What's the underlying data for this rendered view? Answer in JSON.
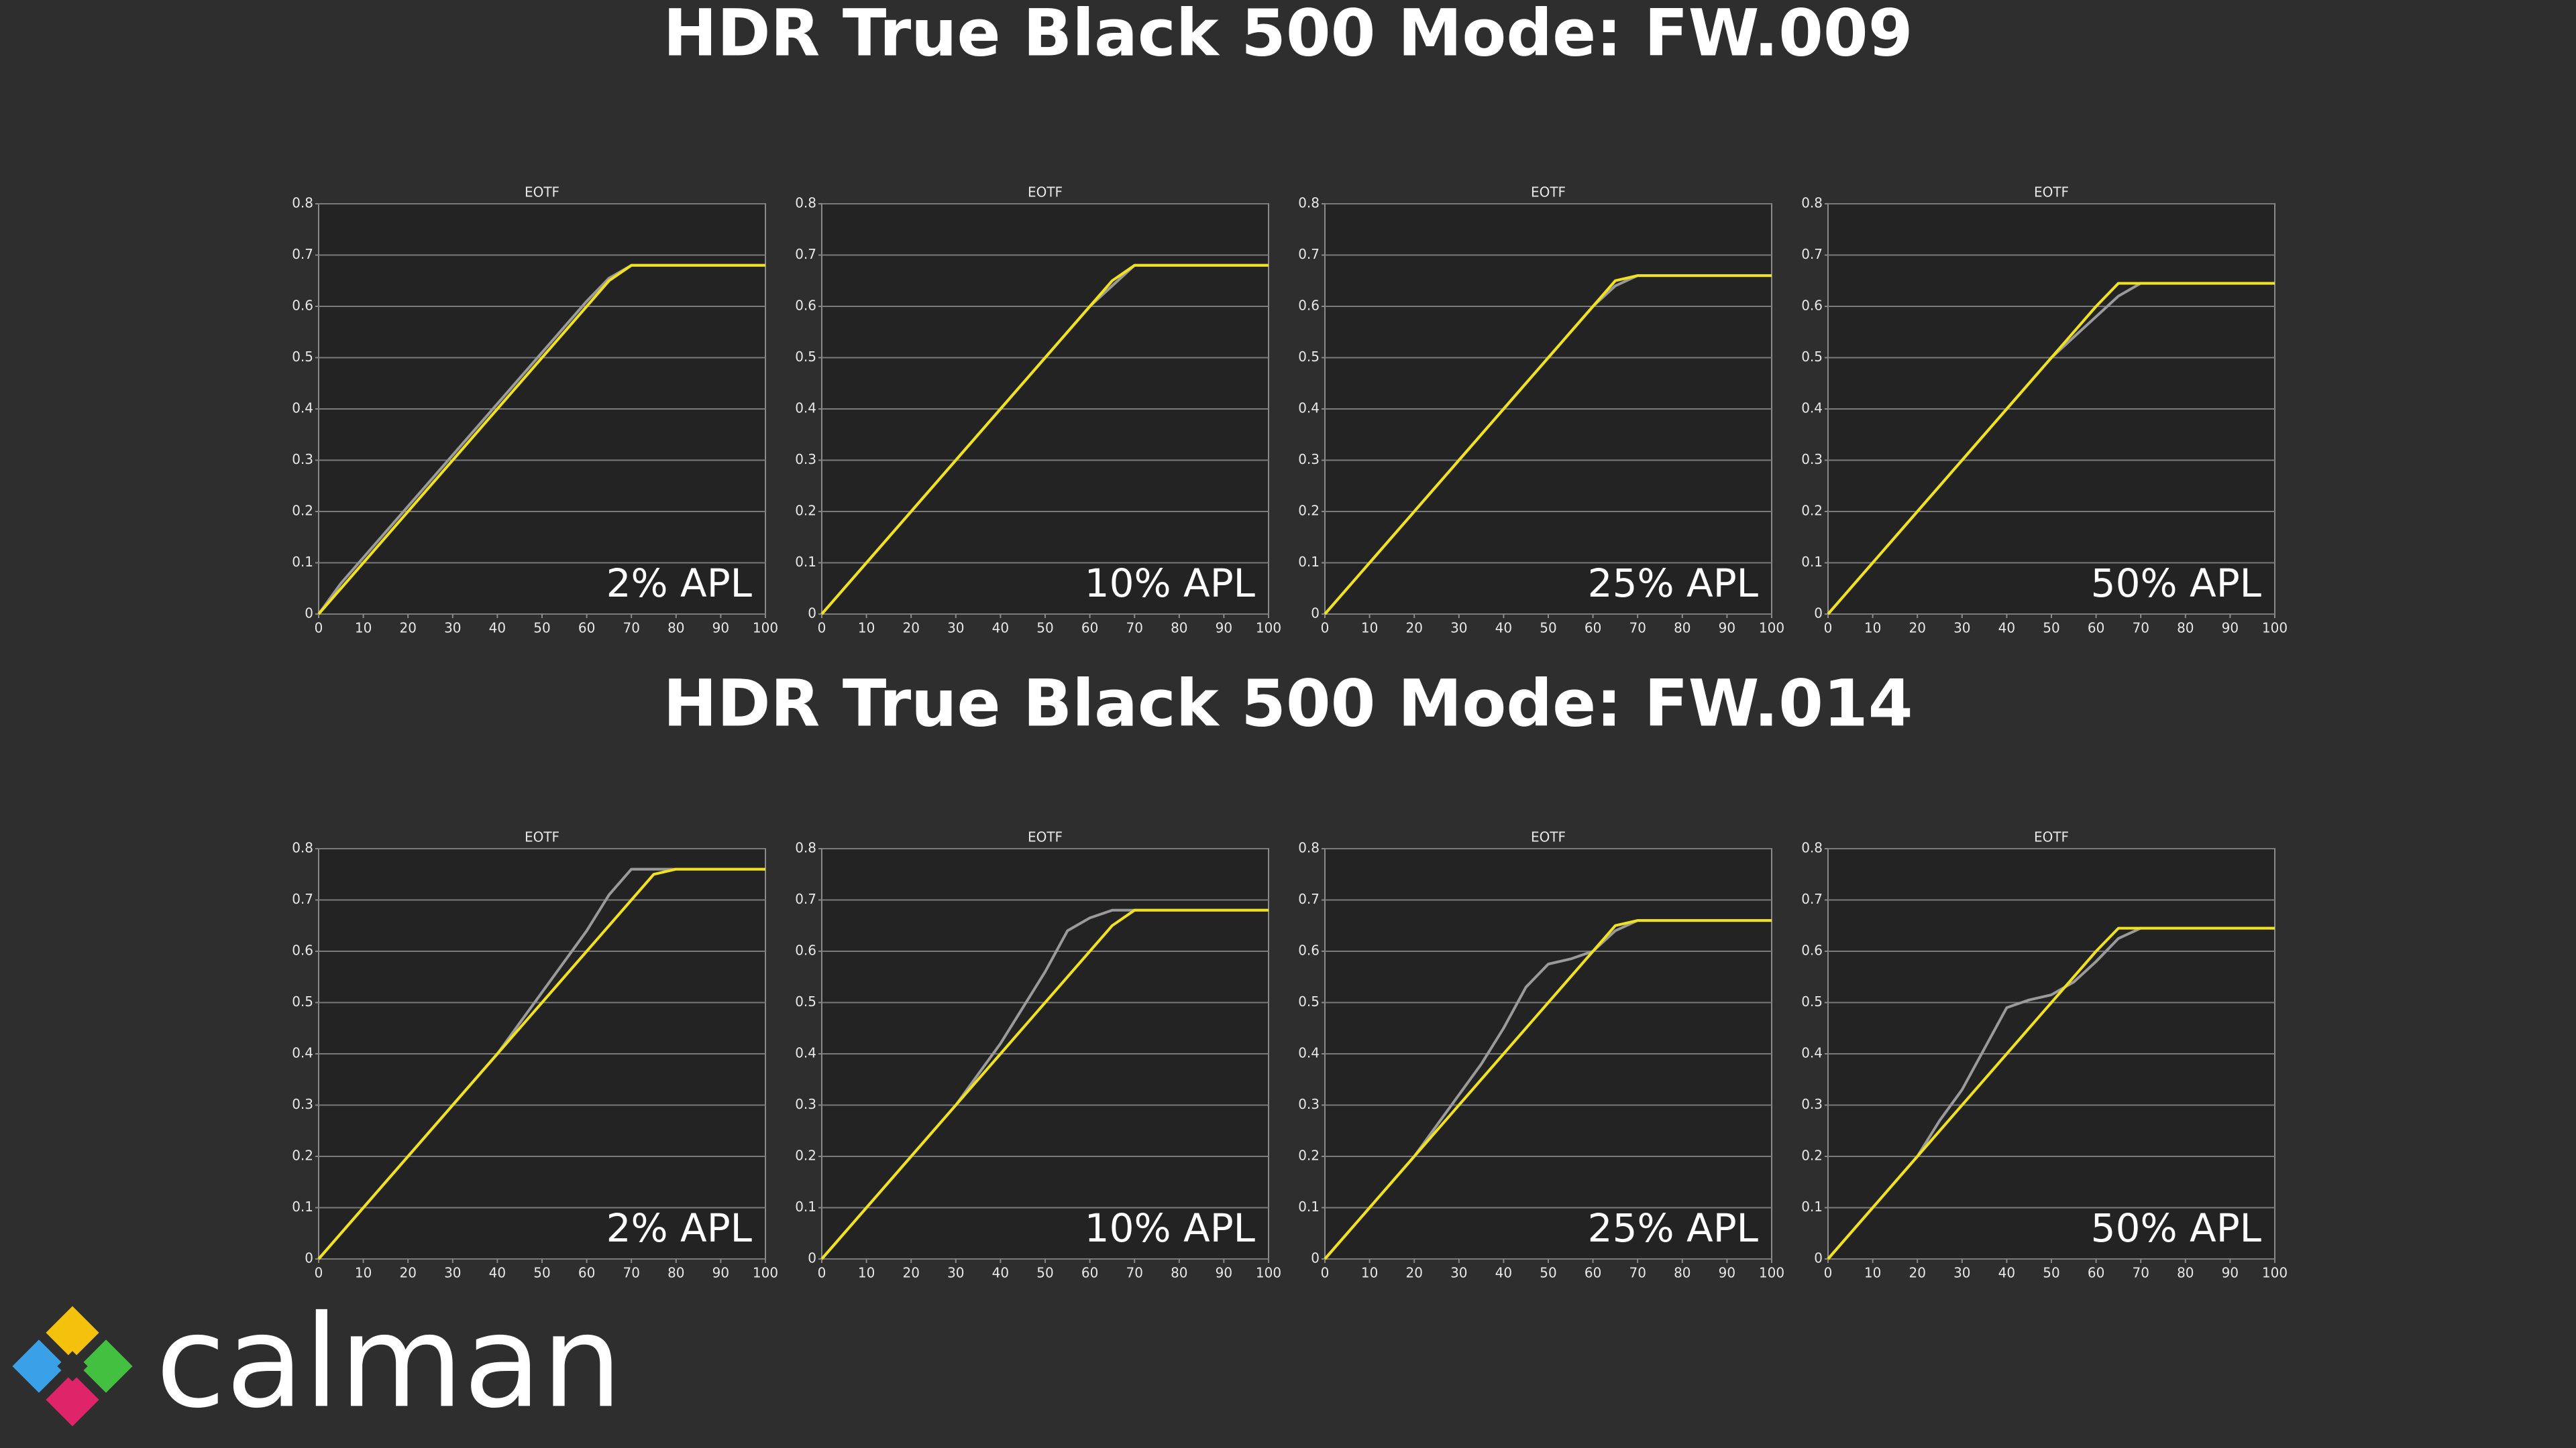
{
  "sections": [
    "HDR True Black 500 Mode: FW.009",
    "HDR True Black 500 Mode: FW.014"
  ],
  "logo": "calman",
  "chart_data": [
    {
      "type": "line",
      "title": "EOTF",
      "annotation": "2% APL",
      "x": [
        0,
        5,
        10,
        15,
        20,
        25,
        30,
        35,
        40,
        45,
        50,
        55,
        60,
        65,
        70,
        75,
        80,
        85,
        90,
        95,
        100
      ],
      "series": [
        {
          "color": "#9a9a9a",
          "values": [
            0,
            0.06,
            0.11,
            0.16,
            0.21,
            0.26,
            0.31,
            0.36,
            0.41,
            0.46,
            0.51,
            0.56,
            0.61,
            0.655,
            0.68,
            0.68,
            0.68,
            0.68,
            0.68,
            0.68,
            0.68
          ]
        },
        {
          "color": "#f2e21e",
          "values": [
            0,
            0.05,
            0.1,
            0.15,
            0.2,
            0.25,
            0.3,
            0.35,
            0.4,
            0.45,
            0.5,
            0.55,
            0.6,
            0.65,
            0.68,
            0.68,
            0.68,
            0.68,
            0.68,
            0.68,
            0.68
          ]
        }
      ],
      "xlim": [
        0,
        100
      ],
      "ylim": [
        0,
        0.8
      ],
      "xticks": [
        0,
        10,
        20,
        30,
        40,
        50,
        60,
        70,
        80,
        90,
        100
      ],
      "yticks": [
        0,
        0.1,
        0.2,
        0.3,
        0.4,
        0.5,
        0.6,
        0.7,
        0.8
      ],
      "grid": true
    },
    {
      "type": "line",
      "title": "EOTF",
      "annotation": "10% APL",
      "x": [
        0,
        5,
        10,
        15,
        20,
        25,
        30,
        35,
        40,
        45,
        50,
        55,
        60,
        65,
        70,
        75,
        80,
        85,
        90,
        95,
        100
      ],
      "series": [
        {
          "color": "#9a9a9a",
          "values": [
            0,
            0.05,
            0.1,
            0.15,
            0.2,
            0.25,
            0.3,
            0.35,
            0.4,
            0.45,
            0.5,
            0.55,
            0.6,
            0.64,
            0.68,
            0.68,
            0.68,
            0.68,
            0.68,
            0.68,
            0.68
          ]
        },
        {
          "color": "#f2e21e",
          "values": [
            0,
            0.05,
            0.1,
            0.15,
            0.2,
            0.25,
            0.3,
            0.35,
            0.4,
            0.45,
            0.5,
            0.55,
            0.6,
            0.65,
            0.68,
            0.68,
            0.68,
            0.68,
            0.68,
            0.68,
            0.68
          ]
        }
      ],
      "xlim": [
        0,
        100
      ],
      "ylim": [
        0,
        0.8
      ],
      "xticks": [
        0,
        10,
        20,
        30,
        40,
        50,
        60,
        70,
        80,
        90,
        100
      ],
      "yticks": [
        0,
        0.1,
        0.2,
        0.3,
        0.4,
        0.5,
        0.6,
        0.7,
        0.8
      ],
      "grid": true
    },
    {
      "type": "line",
      "title": "EOTF",
      "annotation": "25% APL",
      "x": [
        0,
        5,
        10,
        15,
        20,
        25,
        30,
        35,
        40,
        45,
        50,
        55,
        60,
        65,
        70,
        75,
        80,
        85,
        90,
        95,
        100
      ],
      "series": [
        {
          "color": "#9a9a9a",
          "values": [
            0,
            0.05,
            0.1,
            0.15,
            0.2,
            0.25,
            0.3,
            0.35,
            0.4,
            0.45,
            0.5,
            0.55,
            0.6,
            0.64,
            0.66,
            0.66,
            0.66,
            0.66,
            0.66,
            0.66,
            0.66
          ]
        },
        {
          "color": "#f2e21e",
          "values": [
            0,
            0.05,
            0.1,
            0.15,
            0.2,
            0.25,
            0.3,
            0.35,
            0.4,
            0.45,
            0.5,
            0.55,
            0.6,
            0.65,
            0.66,
            0.66,
            0.66,
            0.66,
            0.66,
            0.66,
            0.66
          ]
        }
      ],
      "xlim": [
        0,
        100
      ],
      "ylim": [
        0,
        0.8
      ],
      "xticks": [
        0,
        10,
        20,
        30,
        40,
        50,
        60,
        70,
        80,
        90,
        100
      ],
      "yticks": [
        0,
        0.1,
        0.2,
        0.3,
        0.4,
        0.5,
        0.6,
        0.7,
        0.8
      ],
      "grid": true
    },
    {
      "type": "line",
      "title": "EOTF",
      "annotation": "50% APL",
      "x": [
        0,
        5,
        10,
        15,
        20,
        25,
        30,
        35,
        40,
        45,
        50,
        55,
        60,
        65,
        70,
        75,
        80,
        85,
        90,
        95,
        100
      ],
      "series": [
        {
          "color": "#9a9a9a",
          "values": [
            0,
            0.05,
            0.1,
            0.15,
            0.2,
            0.25,
            0.3,
            0.35,
            0.4,
            0.45,
            0.5,
            0.54,
            0.58,
            0.62,
            0.645,
            0.645,
            0.645,
            0.645,
            0.645,
            0.645,
            0.645
          ]
        },
        {
          "color": "#f2e21e",
          "values": [
            0,
            0.05,
            0.1,
            0.15,
            0.2,
            0.25,
            0.3,
            0.35,
            0.4,
            0.45,
            0.5,
            0.55,
            0.6,
            0.645,
            0.645,
            0.645,
            0.645,
            0.645,
            0.645,
            0.645,
            0.645
          ]
        }
      ],
      "xlim": [
        0,
        100
      ],
      "ylim": [
        0,
        0.8
      ],
      "xticks": [
        0,
        10,
        20,
        30,
        40,
        50,
        60,
        70,
        80,
        90,
        100
      ],
      "yticks": [
        0,
        0.1,
        0.2,
        0.3,
        0.4,
        0.5,
        0.6,
        0.7,
        0.8
      ],
      "grid": true
    },
    {
      "type": "line",
      "title": "EOTF",
      "annotation": "2% APL",
      "x": [
        0,
        5,
        10,
        15,
        20,
        25,
        30,
        35,
        40,
        45,
        50,
        55,
        60,
        65,
        70,
        75,
        80,
        85,
        90,
        95,
        100
      ],
      "series": [
        {
          "color": "#9a9a9a",
          "values": [
            0,
            0.05,
            0.1,
            0.15,
            0.2,
            0.25,
            0.3,
            0.35,
            0.4,
            0.46,
            0.52,
            0.58,
            0.64,
            0.71,
            0.76,
            0.76,
            0.76,
            0.76,
            0.76,
            0.76,
            0.76
          ]
        },
        {
          "color": "#f2e21e",
          "values": [
            0,
            0.05,
            0.1,
            0.15,
            0.2,
            0.25,
            0.3,
            0.35,
            0.4,
            0.45,
            0.5,
            0.55,
            0.6,
            0.65,
            0.7,
            0.75,
            0.76,
            0.76,
            0.76,
            0.76,
            0.76
          ]
        }
      ],
      "xlim": [
        0,
        100
      ],
      "ylim": [
        0,
        0.8
      ],
      "xticks": [
        0,
        10,
        20,
        30,
        40,
        50,
        60,
        70,
        80,
        90,
        100
      ],
      "yticks": [
        0,
        0.1,
        0.2,
        0.3,
        0.4,
        0.5,
        0.6,
        0.7,
        0.8
      ],
      "grid": true
    },
    {
      "type": "line",
      "title": "EOTF",
      "annotation": "10% APL",
      "x": [
        0,
        5,
        10,
        15,
        20,
        25,
        30,
        35,
        40,
        45,
        50,
        55,
        60,
        65,
        70,
        75,
        80,
        85,
        90,
        95,
        100
      ],
      "series": [
        {
          "color": "#9a9a9a",
          "values": [
            0,
            0.05,
            0.1,
            0.15,
            0.2,
            0.25,
            0.3,
            0.36,
            0.42,
            0.49,
            0.56,
            0.64,
            0.665,
            0.68,
            0.68,
            0.68,
            0.68,
            0.68,
            0.68,
            0.68,
            0.68
          ]
        },
        {
          "color": "#f2e21e",
          "values": [
            0,
            0.05,
            0.1,
            0.15,
            0.2,
            0.25,
            0.3,
            0.35,
            0.4,
            0.45,
            0.5,
            0.55,
            0.6,
            0.65,
            0.68,
            0.68,
            0.68,
            0.68,
            0.68,
            0.68,
            0.68
          ]
        }
      ],
      "xlim": [
        0,
        100
      ],
      "ylim": [
        0,
        0.8
      ],
      "xticks": [
        0,
        10,
        20,
        30,
        40,
        50,
        60,
        70,
        80,
        90,
        100
      ],
      "yticks": [
        0,
        0.1,
        0.2,
        0.3,
        0.4,
        0.5,
        0.6,
        0.7,
        0.8
      ],
      "grid": true
    },
    {
      "type": "line",
      "title": "EOTF",
      "annotation": "25% APL",
      "x": [
        0,
        5,
        10,
        15,
        20,
        25,
        30,
        35,
        40,
        45,
        50,
        55,
        60,
        65,
        70,
        75,
        80,
        85,
        90,
        95,
        100
      ],
      "series": [
        {
          "color": "#9a9a9a",
          "values": [
            0,
            0.05,
            0.1,
            0.15,
            0.2,
            0.26,
            0.32,
            0.38,
            0.45,
            0.53,
            0.575,
            0.585,
            0.6,
            0.64,
            0.66,
            0.66,
            0.66,
            0.66,
            0.66,
            0.66,
            0.66
          ]
        },
        {
          "color": "#f2e21e",
          "values": [
            0,
            0.05,
            0.1,
            0.15,
            0.2,
            0.25,
            0.3,
            0.35,
            0.4,
            0.45,
            0.5,
            0.55,
            0.6,
            0.65,
            0.66,
            0.66,
            0.66,
            0.66,
            0.66,
            0.66,
            0.66
          ]
        }
      ],
      "xlim": [
        0,
        100
      ],
      "ylim": [
        0,
        0.8
      ],
      "xticks": [
        0,
        10,
        20,
        30,
        40,
        50,
        60,
        70,
        80,
        90,
        100
      ],
      "yticks": [
        0,
        0.1,
        0.2,
        0.3,
        0.4,
        0.5,
        0.6,
        0.7,
        0.8
      ],
      "grid": true
    },
    {
      "type": "line",
      "title": "EOTF",
      "annotation": "50% APL",
      "x": [
        0,
        5,
        10,
        15,
        20,
        25,
        30,
        35,
        40,
        45,
        50,
        55,
        60,
        65,
        70,
        75,
        80,
        85,
        90,
        95,
        100
      ],
      "series": [
        {
          "color": "#9a9a9a",
          "values": [
            0,
            0.05,
            0.1,
            0.15,
            0.2,
            0.27,
            0.33,
            0.41,
            0.49,
            0.505,
            0.515,
            0.54,
            0.58,
            0.625,
            0.645,
            0.645,
            0.645,
            0.645,
            0.645,
            0.645,
            0.645
          ]
        },
        {
          "color": "#f2e21e",
          "values": [
            0,
            0.05,
            0.1,
            0.15,
            0.2,
            0.25,
            0.3,
            0.35,
            0.4,
            0.45,
            0.5,
            0.55,
            0.6,
            0.645,
            0.645,
            0.645,
            0.645,
            0.645,
            0.645,
            0.645,
            0.645
          ]
        }
      ],
      "xlim": [
        0,
        100
      ],
      "ylim": [
        0,
        0.8
      ],
      "xticks": [
        0,
        10,
        20,
        30,
        40,
        50,
        60,
        70,
        80,
        90,
        100
      ],
      "yticks": [
        0,
        0.1,
        0.2,
        0.3,
        0.4,
        0.5,
        0.6,
        0.7,
        0.8
      ],
      "grid": true
    }
  ]
}
